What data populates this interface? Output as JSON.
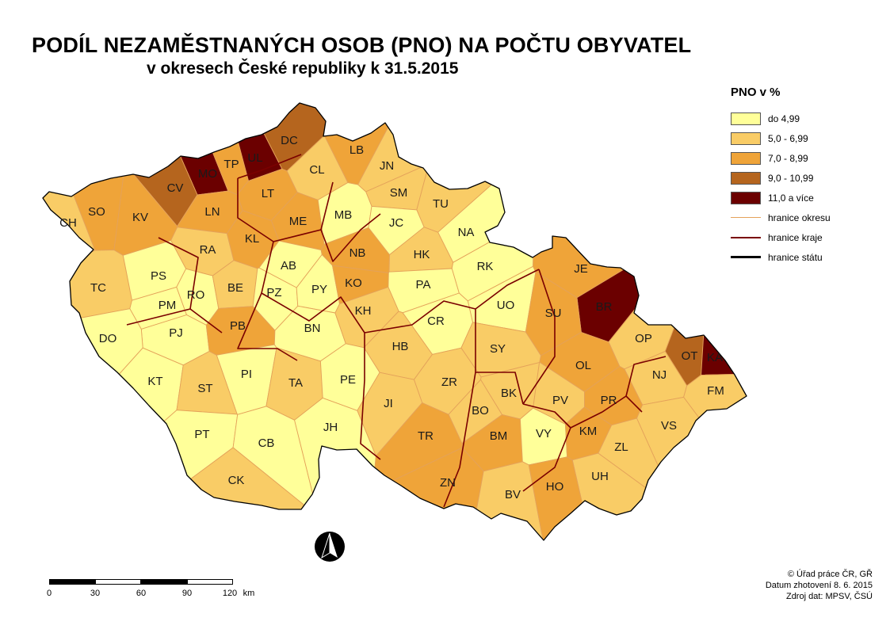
{
  "header": {
    "title": "PODÍL NEZAMĚSTNANÝCH OSOB (PNO) NA POČTU OBYVATEL",
    "subtitle": "v okresech České republiky k 31.5.2015"
  },
  "legend": {
    "title": "PNO v %",
    "classes": [
      {
        "label": "do 4,99",
        "color": "#FFFF99"
      },
      {
        "label": "5,0 - 6,99",
        "color": "#F9CC66"
      },
      {
        "label": "7,0 - 8,99",
        "color": "#EFA439"
      },
      {
        "label": "9,0 - 10,99",
        "color": "#B5651E"
      },
      {
        "label": "11,0 a více",
        "color": "#6B0000"
      }
    ],
    "lines": [
      {
        "label": "hranice okresu",
        "color": "#E4A25A"
      },
      {
        "label": "hranice kraje",
        "color": "#7A0000"
      },
      {
        "label": "hranice státu",
        "color": "#000000"
      }
    ]
  },
  "districts": [
    {
      "code": "DC",
      "class": 3
    },
    {
      "code": "UL",
      "class": 4
    },
    {
      "code": "MO",
      "class": 4
    },
    {
      "code": "CV",
      "class": 3
    },
    {
      "code": "TP",
      "class": 2
    },
    {
      "code": "LT",
      "class": 2
    },
    {
      "code": "CL",
      "class": 1
    },
    {
      "code": "LB",
      "class": 2
    },
    {
      "code": "JN",
      "class": 1
    },
    {
      "code": "SM",
      "class": 1
    },
    {
      "code": "TU",
      "class": 1
    },
    {
      "code": "CH",
      "class": 1
    },
    {
      "code": "SO",
      "class": 2
    },
    {
      "code": "KV",
      "class": 2
    },
    {
      "code": "LN",
      "class": 2
    },
    {
      "code": "ME",
      "class": 2
    },
    {
      "code": "MB",
      "class": 0
    },
    {
      "code": "JC",
      "class": 0
    },
    {
      "code": "NA",
      "class": 0
    },
    {
      "code": "RA",
      "class": 1
    },
    {
      "code": "KL",
      "class": 2
    },
    {
      "code": "AB",
      "class": 0
    },
    {
      "code": "NB",
      "class": 2
    },
    {
      "code": "HK",
      "class": 1
    },
    {
      "code": "RK",
      "class": 0
    },
    {
      "code": "TC",
      "class": 1
    },
    {
      "code": "PS",
      "class": 0
    },
    {
      "code": "PM",
      "class": 0
    },
    {
      "code": "RO",
      "class": 0
    },
    {
      "code": "BE",
      "class": 1
    },
    {
      "code": "PZ",
      "class": 0
    },
    {
      "code": "PY",
      "class": 0
    },
    {
      "code": "KO",
      "class": 2
    },
    {
      "code": "PA",
      "class": 0
    },
    {
      "code": "UO",
      "class": 0
    },
    {
      "code": "JE",
      "class": 2
    },
    {
      "code": "BR",
      "class": 4
    },
    {
      "code": "SU",
      "class": 2
    },
    {
      "code": "PJ",
      "class": 0
    },
    {
      "code": "DO",
      "class": 0
    },
    {
      "code": "PB",
      "class": 2
    },
    {
      "code": "BN",
      "class": 0
    },
    {
      "code": "KH",
      "class": 1
    },
    {
      "code": "CR",
      "class": 0
    },
    {
      "code": "SY",
      "class": 1
    },
    {
      "code": "OP",
      "class": 1
    },
    {
      "code": "OT",
      "class": 3
    },
    {
      "code": "KA",
      "class": 4
    },
    {
      "code": "HB",
      "class": 1
    },
    {
      "code": "OL",
      "class": 2
    },
    {
      "code": "NJ",
      "class": 1
    },
    {
      "code": "KT",
      "class": 0
    },
    {
      "code": "PI",
      "class": 0
    },
    {
      "code": "TA",
      "class": 1
    },
    {
      "code": "PE",
      "class": 0
    },
    {
      "code": "ZR",
      "class": 1
    },
    {
      "code": "ST",
      "class": 1
    },
    {
      "code": "JI",
      "class": 1
    },
    {
      "code": "BK",
      "class": 1
    },
    {
      "code": "PV",
      "class": 1
    },
    {
      "code": "PR",
      "class": 2
    },
    {
      "code": "FM",
      "class": 1
    },
    {
      "code": "BO",
      "class": 1
    },
    {
      "code": "VS",
      "class": 1
    },
    {
      "code": "TR",
      "class": 2
    },
    {
      "code": "BM",
      "class": 2
    },
    {
      "code": "VY",
      "class": 0
    },
    {
      "code": "KM",
      "class": 2
    },
    {
      "code": "PT",
      "class": 0
    },
    {
      "code": "CB",
      "class": 0
    },
    {
      "code": "JH",
      "class": 0
    },
    {
      "code": "ZL",
      "class": 1
    },
    {
      "code": "UH",
      "class": 1
    },
    {
      "code": "CK",
      "class": 1
    },
    {
      "code": "ZN",
      "class": 2
    },
    {
      "code": "BV",
      "class": 1
    },
    {
      "code": "HO",
      "class": 2
    }
  ],
  "scale": {
    "ticks": [
      "0",
      "30",
      "60",
      "90",
      "120"
    ],
    "unit": "km"
  },
  "credits": {
    "line1": "© Úřad práce ČR, GŘ",
    "line2": "Datum zhotovení 8. 6. 2015",
    "line3": "Zdroj dat: MPSV, ČSÚ"
  }
}
